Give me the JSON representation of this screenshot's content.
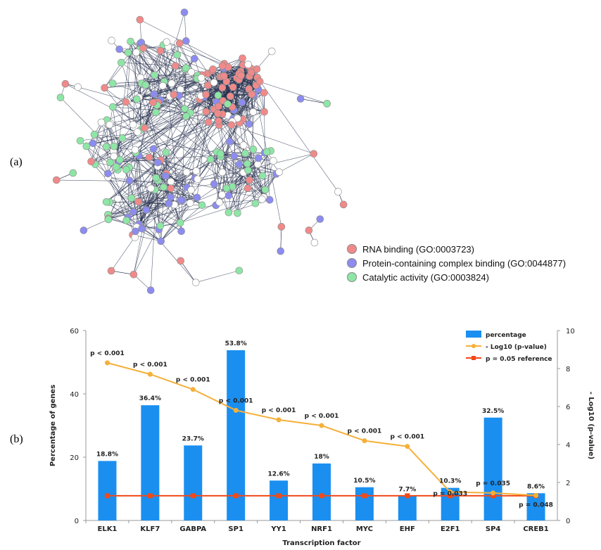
{
  "panel_labels": {
    "a": "(a)",
    "b": "(b)"
  },
  "network": {
    "legend": [
      {
        "label": "RNA binding (GO:0003723)",
        "color": "#f08a8a"
      },
      {
        "label": "Protein-containing complex binding (GO:0044877)",
        "color": "#8c8cf0"
      },
      {
        "label": "Catalytic activity (GO:0003824)",
        "color": "#8ee6a6"
      }
    ],
    "edge_color": "#2a3350",
    "uncolored_node": "#ffffff"
  },
  "chart_data": {
    "type": "bar",
    "xlabel": "Transcription factor",
    "ylabel": "Percentage of genes",
    "y2label": "- Log10 (p-value)",
    "ylim": [
      0,
      60
    ],
    "y2lim": [
      0,
      10
    ],
    "yticks": [
      "0",
      "20",
      "40",
      "60"
    ],
    "y2ticks": [
      "0",
      "2",
      "4",
      "6",
      "8",
      "10"
    ],
    "categories": [
      "ELK1",
      "KLF7",
      "GABPA",
      "SP1",
      "YY1",
      "NRF1",
      "MYC",
      "EHF",
      "E2F1",
      "SP4",
      "CREB1"
    ],
    "series": [
      {
        "name": "percentage",
        "type": "bar",
        "axis": "left",
        "color": "#1a8ff0",
        "values": [
          18.8,
          36.4,
          23.7,
          53.8,
          12.6,
          18,
          10.5,
          7.7,
          10.3,
          32.5,
          8.6
        ],
        "labels": [
          "18.8%",
          "36.4%",
          "23.7%",
          "53.8%",
          "12.6%",
          "18%",
          "10.5%",
          "7.7%",
          "10.3%",
          "32.5%",
          "8.6%"
        ]
      },
      {
        "name": "- Log10 (p-value)",
        "type": "line",
        "axis": "right",
        "color": "#f5b03a",
        "values": [
          8.3,
          7.7,
          6.9,
          5.8,
          5.3,
          5.0,
          4.2,
          3.9,
          1.5,
          1.45,
          1.32
        ],
        "labels": [
          "p < 0.001",
          "p < 0.001",
          "p < 0.001",
          "p < 0.001",
          "p < 0.001",
          "p < 0.001",
          "p < 0.001",
          "p < 0.001",
          "p = 0.033",
          "p = 0.035",
          "p = 0.048"
        ]
      },
      {
        "name": "p = 0.05 reference",
        "type": "line",
        "axis": "right",
        "color": "#f04a1a",
        "values": [
          1.3,
          1.3,
          1.3,
          1.3,
          1.3,
          1.3,
          1.3,
          1.3,
          1.3,
          1.3,
          1.3
        ]
      }
    ],
    "legend_position": "top-right"
  }
}
